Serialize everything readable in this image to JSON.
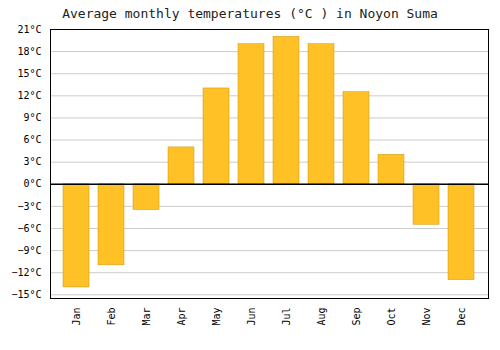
{
  "chart_data": {
    "type": "bar",
    "title": "Average monthly temperatures (°C ) in Noyon Suma",
    "categories": [
      "Jan",
      "Feb",
      "Mar",
      "Apr",
      "May",
      "Jun",
      "Jul",
      "Aug",
      "Sep",
      "Oct",
      "Nov",
      "Dec"
    ],
    "values": [
      -14,
      -11,
      -3.5,
      5,
      13,
      19,
      20,
      19,
      12.5,
      4,
      -5.5,
      -13
    ],
    "color": "#FFC125",
    "ylim": [
      -15.5,
      21
    ],
    "yticks": [
      {
        "value": -15,
        "label": "−15°C"
      },
      {
        "value": -12,
        "label": "−12°C"
      },
      {
        "value": -9,
        "label": "−9°C"
      },
      {
        "value": -6,
        "label": "−6°C"
      },
      {
        "value": -3,
        "label": "−3°C"
      },
      {
        "value": 0,
        "label": "0°C"
      },
      {
        "value": 3,
        "label": "3°C"
      },
      {
        "value": 6,
        "label": "6°C"
      },
      {
        "value": 9,
        "label": "9°C"
      },
      {
        "value": 12,
        "label": "12°C"
      },
      {
        "value": 15,
        "label": "15°C"
      },
      {
        "value": 18,
        "label": "18°C"
      },
      {
        "value": 21,
        "label": "21°C"
      }
    ],
    "grid": true
  }
}
